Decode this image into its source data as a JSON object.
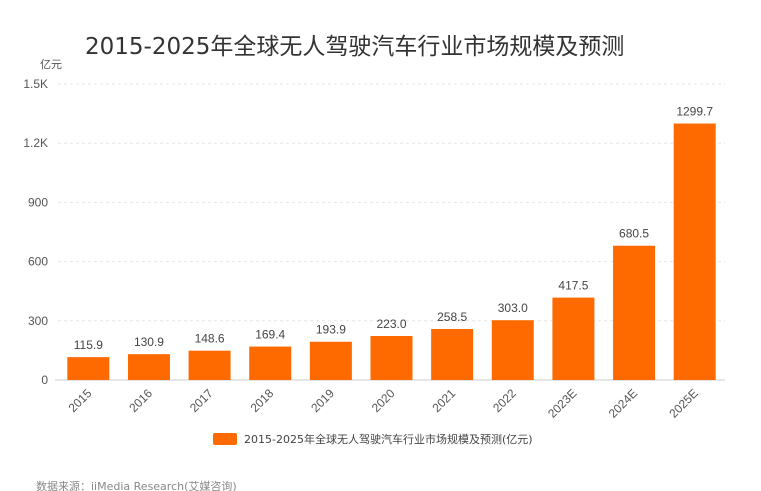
{
  "chart_data": {
    "type": "bar",
    "title": "2015-2025年全球无人驾驶汽车行业市场规模及预测",
    "unit_label": "亿元",
    "categories": [
      "2015",
      "2016",
      "2017",
      "2018",
      "2019",
      "2020",
      "2021",
      "2022",
      "2023E",
      "2024E",
      "2025E"
    ],
    "series": [
      {
        "name": "2015-2025年全球无人驾驶汽车行业市场规模及预测(亿元)",
        "values": [
          115.9,
          130.9,
          148.6,
          169.4,
          193.9,
          223.0,
          258.5,
          303.0,
          417.5,
          680.5,
          1299.7
        ],
        "value_labels": [
          "115.9",
          "130.9",
          "148.6",
          "169.4",
          "193.9",
          "223.0",
          "258.5",
          "303.0",
          "417.5",
          "680.5",
          "1299.7"
        ],
        "color": "#FF6A00"
      }
    ],
    "y_ticks": [
      0,
      300,
      600,
      900,
      1200,
      1500
    ],
    "y_tick_labels": [
      "0",
      "300",
      "600",
      "900",
      "1.2K",
      "1.5K"
    ],
    "ylim": [
      0,
      1500
    ],
    "grid": true,
    "legend_position": "bottom",
    "source": "数据来源：iiMedia Research(艾媒咨询)"
  }
}
